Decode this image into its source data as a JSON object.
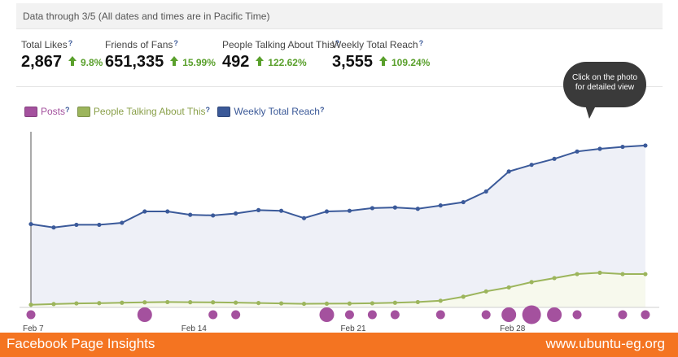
{
  "header": {
    "data_note": "Data through 3/5 (All dates and times are in Pacific Time)"
  },
  "metrics": [
    {
      "label": "Total Likes",
      "help": "?",
      "value": "2,867",
      "change": "9.8%"
    },
    {
      "label": "Friends of Fans",
      "help": "?",
      "value": "651,335",
      "change": "15.99%"
    },
    {
      "label": "People Talking About This",
      "help": "?",
      "value": "492",
      "change": "122.62%"
    },
    {
      "label": "Weekly Total Reach",
      "help": "?",
      "value": "3,555",
      "change": "109.24%"
    }
  ],
  "legend": [
    {
      "label": "Posts",
      "color": "#a4519e",
      "help": "?"
    },
    {
      "label": "People Talking About This",
      "color": "#9cb55c",
      "help": "?"
    },
    {
      "label": "Weekly Total Reach",
      "color": "#3b5998",
      "help": "?"
    }
  ],
  "tooltip": {
    "line1": "Click on the photo",
    "line2": "for detailed view"
  },
  "footer": {
    "left": "Facebook Page Insights",
    "right": "www.ubuntu-eg.org"
  },
  "colors": {
    "reach_line": "#3b5a9a",
    "reach_fill": "#eef0f7",
    "ptat_line": "#9cb55c",
    "ptat_fill": "#f7f9ed",
    "posts": "#a4519e",
    "footer": "#f47421",
    "positive": "#5aa02c"
  },
  "chart_data": {
    "type": "line",
    "x_tick_labels": [
      "Feb 7",
      "Feb 14",
      "Feb 21",
      "Feb 28"
    ],
    "x": [
      1,
      2,
      3,
      4,
      5,
      6,
      7,
      8,
      9,
      10,
      11,
      12,
      13,
      14,
      15,
      16,
      17,
      18,
      19,
      20,
      21,
      22,
      23,
      24,
      25,
      26,
      27,
      28
    ],
    "series": [
      {
        "name": "Weekly Total Reach",
        "values": [
          1250,
          1200,
          1240,
          1240,
          1270,
          1440,
          1440,
          1390,
          1380,
          1410,
          1460,
          1450,
          1340,
          1440,
          1450,
          1490,
          1500,
          1480,
          1530,
          1580,
          1740,
          2040,
          2140,
          2230,
          2340,
          2380,
          2410,
          2430
        ]
      },
      {
        "name": "People Talking About This",
        "values": [
          40,
          50,
          60,
          64,
          70,
          76,
          80,
          78,
          76,
          72,
          66,
          60,
          54,
          56,
          58,
          62,
          70,
          80,
          100,
          160,
          240,
          300,
          380,
          440,
          500,
          520,
          500,
          500
        ]
      },
      {
        "name": "Posts",
        "values": [
          1,
          0,
          0,
          0,
          0,
          2,
          0,
          0,
          1,
          1,
          0,
          0,
          0,
          2,
          1,
          1,
          1,
          0,
          1,
          0,
          1,
          2,
          3,
          2,
          1,
          0,
          1,
          1
        ]
      }
    ],
    "ylim": [
      0,
      2600
    ],
    "grid": false
  }
}
